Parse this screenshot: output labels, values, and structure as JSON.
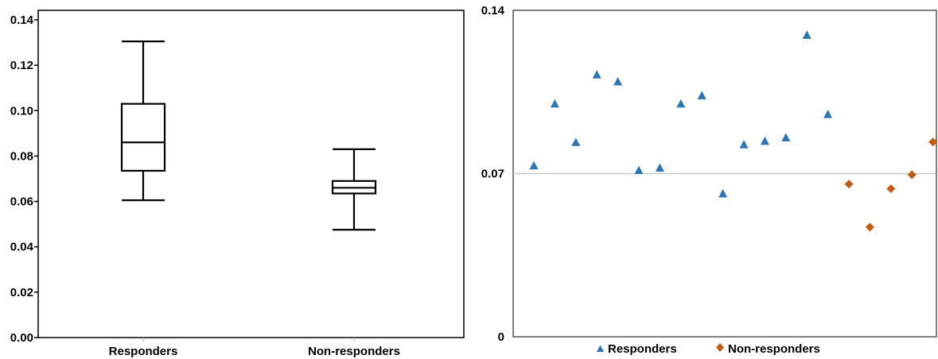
{
  "chart_data": [
    {
      "type": "box",
      "categories": [
        "Responders",
        "Non-responders"
      ],
      "boxes": [
        {
          "name": "Responders",
          "min": 0.0605,
          "q1": 0.0735,
          "median": 0.086,
          "q3": 0.103,
          "max": 0.1305
        },
        {
          "name": "Non-responders",
          "min": 0.0475,
          "q1": 0.0635,
          "median": 0.066,
          "q3": 0.069,
          "max": 0.083
        }
      ],
      "ylim": [
        0,
        0.14
      ],
      "yticks": [
        "0.00",
        "0.02",
        "0.04",
        "0.06",
        "0.08",
        "0.10",
        "0.12",
        "0.14"
      ],
      "grid": false,
      "color": "#000000"
    },
    {
      "type": "scatter",
      "ylim": [
        0,
        0.14
      ],
      "yticks": [
        "0",
        "0.07",
        "0.14"
      ],
      "reference_line": 0.07,
      "reference_color": "#c8c8c8",
      "legend_position": "bottom",
      "series": [
        {
          "name": "Responders",
          "marker": "triangle",
          "color": "#2e75b6",
          "x": [
            1,
            2,
            3,
            4,
            5,
            6,
            7,
            8,
            9,
            10,
            11,
            12,
            13,
            14,
            15
          ],
          "y": [
            0.0735,
            0.1,
            0.0835,
            0.1125,
            0.1095,
            0.0715,
            0.0725,
            0.1,
            0.1035,
            0.0615,
            0.0825,
            0.084,
            0.0855,
            0.1295,
            0.0955
          ]
        },
        {
          "name": "Non-responders",
          "marker": "diamond",
          "color": "#c55a11",
          "x": [
            16,
            17,
            18,
            19,
            20
          ],
          "y": [
            0.0655,
            0.047,
            0.0635,
            0.0695,
            0.0835
          ]
        }
      ]
    }
  ]
}
